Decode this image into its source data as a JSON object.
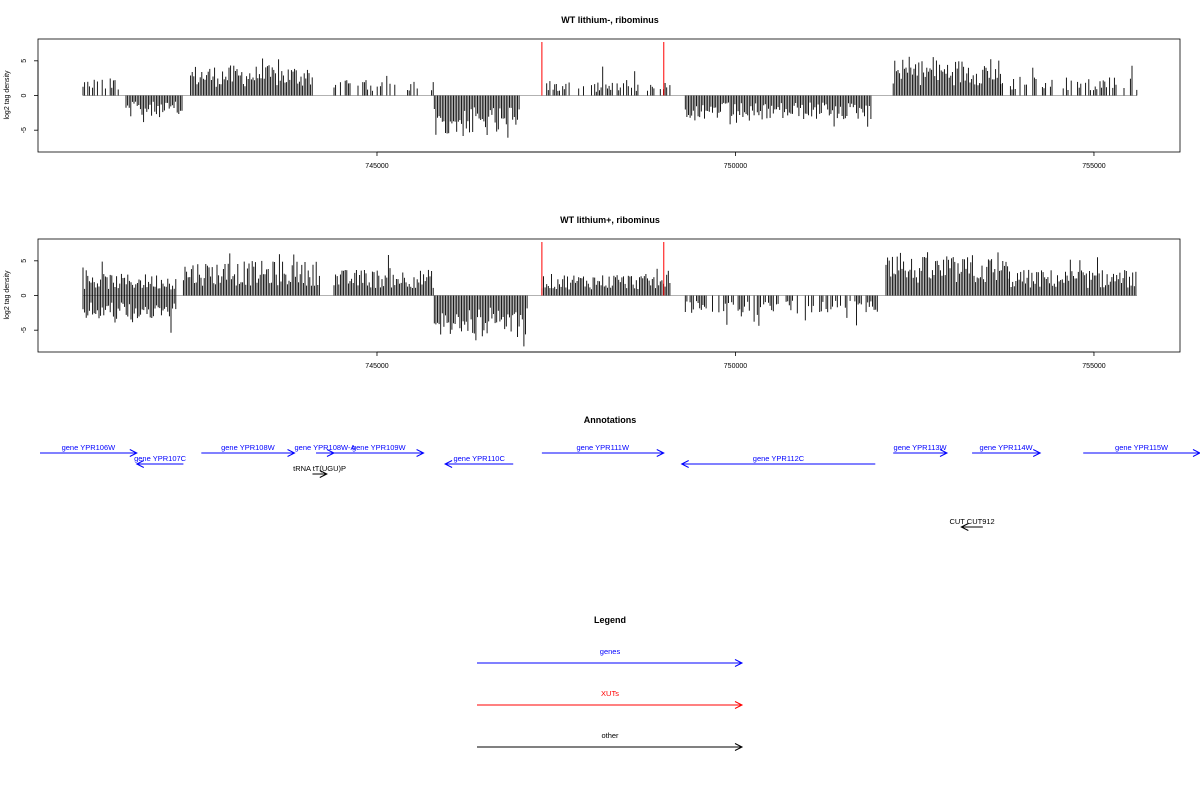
{
  "colors": {
    "gene": "#0000ff",
    "xut": "#ff0000",
    "other": "#000000",
    "signal": "#000000",
    "marker": "#ff0000",
    "frame": "#000000"
  },
  "x_range": [
    740300,
    756200
  ],
  "x_ticks": [
    745000,
    750000,
    755000
  ],
  "marker_positions": [
    747300,
    749000
  ],
  "chart_data": [
    {
      "type": "bar",
      "title": "WT lithium-, ribominus",
      "ylabel": "log2 tag density",
      "ylim": [
        -8,
        8
      ],
      "y_ticks": [
        -5,
        0,
        5
      ],
      "segments": [
        {
          "x": [
            740900,
            741400
          ],
          "strand": "plus",
          "mean": 2.0
        },
        {
          "x": [
            741500,
            742300
          ],
          "strand": "minus",
          "mean": 2.5
        },
        {
          "x": [
            742400,
            744100
          ],
          "strand": "plus",
          "mean": 3.5
        },
        {
          "x": [
            744400,
            745800
          ],
          "strand": "plus",
          "mean": 1.8
        },
        {
          "x": [
            745800,
            747000
          ],
          "strand": "minus",
          "mean": 4.8
        },
        {
          "x": [
            747300,
            749100
          ],
          "strand": "plus",
          "mean": 1.5
        },
        {
          "x": [
            749300,
            751900
          ],
          "strand": "minus",
          "mean": 2.8
        },
        {
          "x": [
            752200,
            753700
          ],
          "strand": "plus",
          "mean": 4.2
        },
        {
          "x": [
            753700,
            755600
          ],
          "strand": "plus",
          "mean": 2.2
        }
      ]
    },
    {
      "type": "bar",
      "title": "WT lithium+, ribominus",
      "ylabel": "log2 tag density",
      "ylim": [
        -8,
        8
      ],
      "y_ticks": [
        -5,
        0,
        5
      ],
      "segments": [
        {
          "x": [
            740900,
            742200
          ],
          "strand": "plus",
          "mean": 2.5
        },
        {
          "x": [
            740900,
            742200
          ],
          "strand": "minus",
          "mean": 2.8
        },
        {
          "x": [
            742300,
            744200
          ],
          "strand": "plus",
          "mean": 4.0
        },
        {
          "x": [
            744400,
            745800
          ],
          "strand": "plus",
          "mean": 3.0
        },
        {
          "x": [
            745800,
            747100
          ],
          "strand": "minus",
          "mean": 4.8
        },
        {
          "x": [
            747300,
            749100
          ],
          "strand": "plus",
          "mean": 2.5
        },
        {
          "x": [
            749300,
            752000
          ],
          "strand": "minus",
          "mean": 2.0
        },
        {
          "x": [
            752100,
            753800
          ],
          "strand": "plus",
          "mean": 4.5
        },
        {
          "x": [
            753800,
            755600
          ],
          "strand": "plus",
          "mean": 3.0
        }
      ]
    }
  ],
  "annotations": {
    "title": "Annotations",
    "features": [
      {
        "label": "gene YPR106W",
        "start": 740300,
        "end": 741650,
        "strand": "+",
        "type": "gene"
      },
      {
        "label": "gene YPR107C",
        "start": 741650,
        "end": 742300,
        "strand": "-",
        "type": "gene"
      },
      {
        "label": "gene YPR108W",
        "start": 742550,
        "end": 743850,
        "strand": "+",
        "type": "gene"
      },
      {
        "label": "gene YPR108W-A",
        "start": 744150,
        "end": 744400,
        "strand": "+",
        "type": "gene"
      },
      {
        "label": "gene YPR109W",
        "start": 744400,
        "end": 745650,
        "strand": "+",
        "type": "gene"
      },
      {
        "label": "tRNA tT(UGU)P",
        "start": 744100,
        "end": 744300,
        "strand": "+",
        "type": "other"
      },
      {
        "label": "gene YPR110C",
        "start": 745950,
        "end": 746900,
        "strand": "-",
        "type": "gene"
      },
      {
        "label": "gene YPR111W",
        "start": 747300,
        "end": 749000,
        "strand": "+",
        "type": "gene"
      },
      {
        "label": "gene YPR112C",
        "start": 749250,
        "end": 751950,
        "strand": "-",
        "type": "gene"
      },
      {
        "label": "gene YPR113W",
        "start": 752200,
        "end": 752950,
        "strand": "+",
        "type": "gene"
      },
      {
        "label": "gene YPR114W",
        "start": 753300,
        "end": 754250,
        "strand": "+",
        "type": "gene"
      },
      {
        "label": "gene YPR115W",
        "start": 754850,
        "end": 757000,
        "strand": "+",
        "type": "gene"
      },
      {
        "label": "CUT CUT912",
        "start": 753150,
        "end": 753450,
        "strand": "-",
        "type": "other"
      }
    ]
  },
  "legend": {
    "title": "Legend",
    "items": [
      {
        "label": "genes",
        "type": "gene"
      },
      {
        "label": "XUTs",
        "type": "xut"
      },
      {
        "label": "other",
        "type": "other"
      }
    ]
  }
}
